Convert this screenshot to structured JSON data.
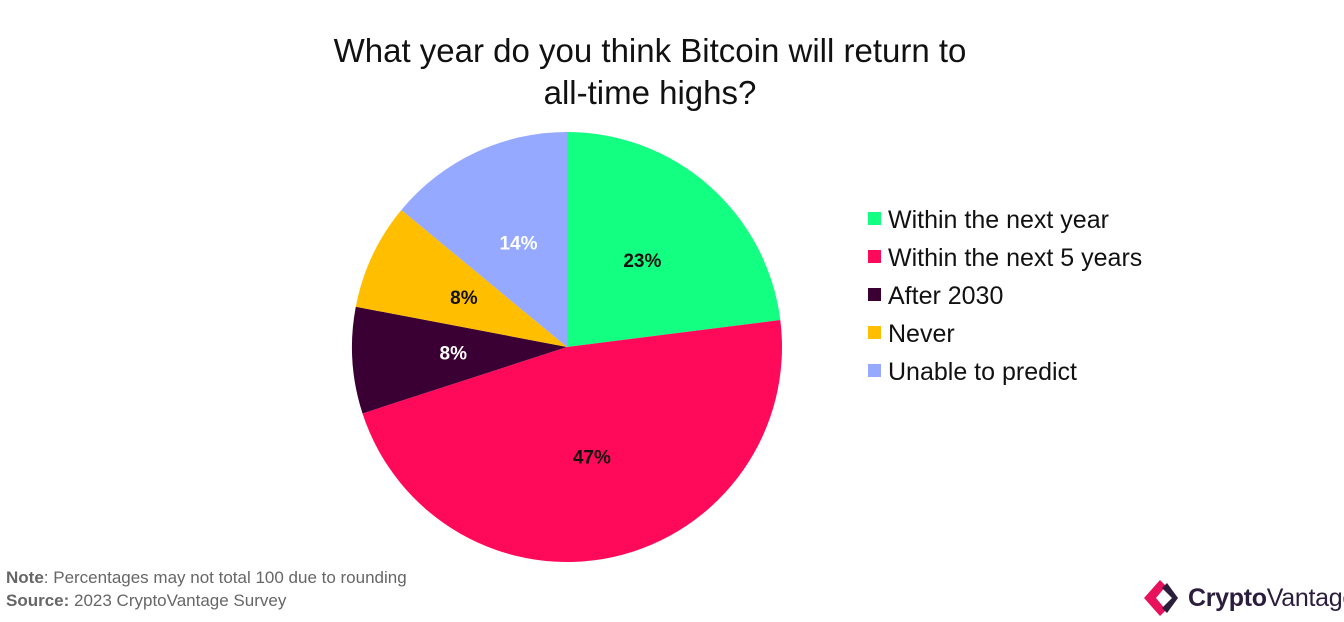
{
  "chart_data": {
    "type": "pie",
    "title_lines": [
      "What year do you think Bitcoin will return to",
      "all-time highs?"
    ],
    "slices": [
      {
        "label": "Within the next year",
        "value": 23,
        "display": "23%",
        "color": "#12ff81",
        "label_color": "#111111"
      },
      {
        "label": "Within the next 5 years",
        "value": 47,
        "display": "47%",
        "color": "#ff0a5a",
        "label_color": "#111111"
      },
      {
        "label": "After 2030",
        "value": 8,
        "display": "8%",
        "color": "#3b0033",
        "label_color": "#ffffff"
      },
      {
        "label": "Never",
        "value": 8,
        "display": "8%",
        "color": "#ffbe00",
        "label_color": "#111111"
      },
      {
        "label": "Unable to predict",
        "value": 14,
        "display": "14%",
        "color": "#94a9ff",
        "label_color": "#ffffff"
      }
    ],
    "legend_position": "right"
  },
  "legend": [
    {
      "label": "Within the next year",
      "color": "#12ff81"
    },
    {
      "label": "Within the next 5 years",
      "color": "#ff0a5a"
    },
    {
      "label": "After 2030",
      "color": "#3b0033"
    },
    {
      "label": "Never",
      "color": "#ffbe00"
    },
    {
      "label": "Unable to predict",
      "color": "#94a9ff"
    }
  ],
  "footnote": {
    "note_label": "Note",
    "note_text": ": Percentages may not total 100 due to rounding",
    "source_label": "Source:",
    "source_text": " 2023 CryptoVantage Survey"
  },
  "brand": {
    "name_part1": "Crypto",
    "name_part2": "Vantage",
    "logo_icon": "diamond-chevron-icon",
    "logo_colors": [
      "#e8125c",
      "#2b1d3c"
    ]
  }
}
